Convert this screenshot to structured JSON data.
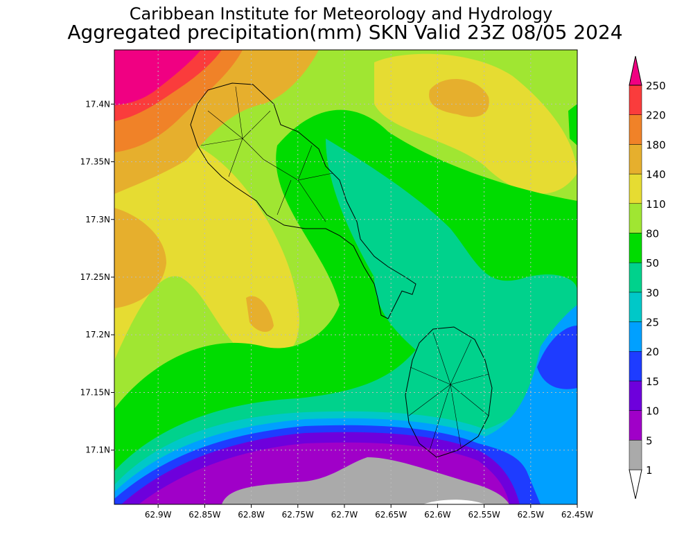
{
  "map_data": {
    "title": "Caribbean Institute for Meteorology and Hydrology",
    "subtitle": "Aggregated precipitation(mm) SKN Valid 23Z 08/05 2024",
    "xlim": [
      -62.947,
      -62.45
    ],
    "ylim": [
      17.053,
      17.447
    ],
    "xticks": [
      {
        "value": -62.9,
        "label": "62.9W"
      },
      {
        "value": -62.85,
        "label": "62.85W"
      },
      {
        "value": -62.8,
        "label": "62.8W"
      },
      {
        "value": -62.75,
        "label": "62.75W"
      },
      {
        "value": -62.7,
        "label": "62.7W"
      },
      {
        "value": -62.65,
        "label": "62.65W"
      },
      {
        "value": -62.6,
        "label": "62.6W"
      },
      {
        "value": -62.55,
        "label": "62.55W"
      },
      {
        "value": -62.5,
        "label": "62.5W"
      },
      {
        "value": -62.45,
        "label": "62.45W"
      }
    ],
    "yticks": [
      {
        "value": 17.1,
        "label": "17.1N"
      },
      {
        "value": 17.15,
        "label": "17.15N"
      },
      {
        "value": 17.2,
        "label": "17.2N"
      },
      {
        "value": 17.25,
        "label": "17.25N"
      },
      {
        "value": 17.3,
        "label": "17.3N"
      },
      {
        "value": 17.35,
        "label": "17.35N"
      },
      {
        "value": 17.4,
        "label": "17.4N"
      }
    ],
    "grid": true,
    "colorbar": {
      "levels": [
        1,
        5,
        10,
        15,
        20,
        25,
        30,
        50,
        80,
        110,
        140,
        180,
        220,
        250
      ],
      "colors": [
        "#ffffff",
        "#aaaaaa",
        "#a000c8",
        "#6e00dc",
        "#1e3cff",
        "#00a0ff",
        "#00c8c8",
        "#00d28c",
        "#00dc00",
        "#a0e632",
        "#e6dc32",
        "#e6af2d",
        "#f08228",
        "#fa3c3c",
        "#f00082"
      ]
    }
  }
}
